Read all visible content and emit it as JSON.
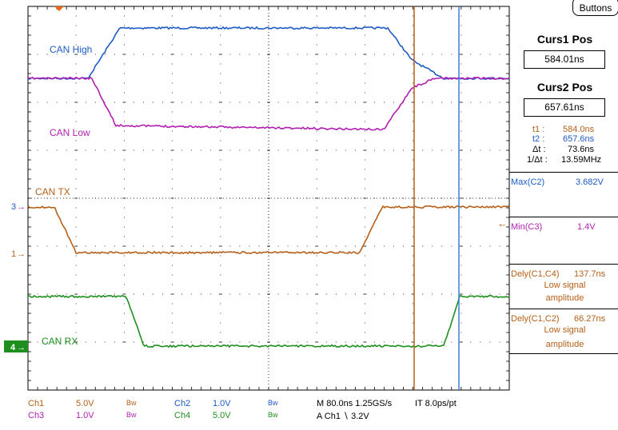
{
  "colors": {
    "ch1": "#b5601a",
    "ch2": "#1e5bc6",
    "ch3": "#b01fb0",
    "ch4": "#1e8f1e",
    "grid": "#000000",
    "cursor1": "#b5601a",
    "cursor2": "#3a7fd8"
  },
  "traces": {
    "can_high": "CAN High",
    "can_low": "CAN Low",
    "can_tx": "CAN TX",
    "can_rx": "CAN RX"
  },
  "markers": {
    "ch3": "3",
    "ch1": "1",
    "ch4": "4"
  },
  "side": {
    "buttons_label": "Buttons",
    "curs1_title": "Curs1 Pos",
    "curs1_value": "584.01ns",
    "curs2_title": "Curs2 Pos",
    "curs2_value": "657.61ns",
    "t1_label": "t1 :",
    "t1_value": "584.0ns",
    "t2_label": "t2 :",
    "t2_value": "657.6ns",
    "dt_label": "Δt :",
    "dt_value": "73.6ns",
    "inv_dt_label": "1/Δt :",
    "inv_dt_value": "13.59MHz",
    "max_label": "Max(C2)",
    "max_value": "3.682V",
    "min_label": "Min(C3)",
    "min_value": "1.4V",
    "dely1_label": "Dely(C1,C4)",
    "dely1_value": "137.7ns",
    "dely1_note1": "Low signal",
    "dely1_note2": "amplitude",
    "dely2_label": "Dely(C1,C2)",
    "dely2_value": "66.27ns",
    "dely2_note1": "Low signal",
    "dely2_note2": "amplitude"
  },
  "bottom": {
    "ch1": "Ch1",
    "ch1_scale": "5.0V",
    "ch3": "Ch3",
    "ch3_scale": "1.0V",
    "bw": "Bw",
    "ch2": "Ch2",
    "ch2_scale": "1.0V",
    "ch4": "Ch4",
    "ch4_scale": "5.0V",
    "timebase": "M 80.0ns 1.25GS/s",
    "record": "IT 8.0ps/pt",
    "trigger": "A  Ch1  ∖  3.2V"
  }
}
